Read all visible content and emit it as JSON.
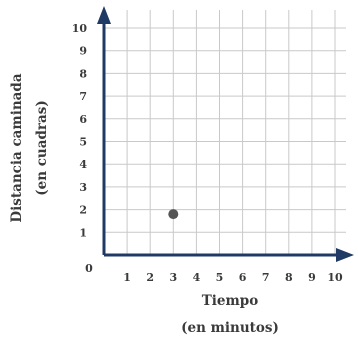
{
  "chart_data": {
    "type": "scatter",
    "title": "",
    "xlabel_lines": [
      "Tiempo",
      "(en minutos)"
    ],
    "ylabel_lines": [
      "Distancia caminada",
      "(en cuadras)"
    ],
    "origin_label": "0",
    "x_ticks": [
      "1",
      "2",
      "3",
      "4",
      "5",
      "6",
      "7",
      "8",
      "9",
      "10"
    ],
    "y_ticks": [
      "1",
      "2",
      "3",
      "4",
      "5",
      "6",
      "7",
      "8",
      "9",
      "10"
    ],
    "xlim": [
      0,
      10
    ],
    "ylim": [
      0,
      10
    ],
    "grid": true,
    "points": [
      {
        "x": 3,
        "y": 1.8
      }
    ],
    "colors": {
      "axis": "#1f3a64",
      "grid": "#c9c9c9",
      "point": "#555555",
      "text": "#3a3a3a"
    }
  }
}
